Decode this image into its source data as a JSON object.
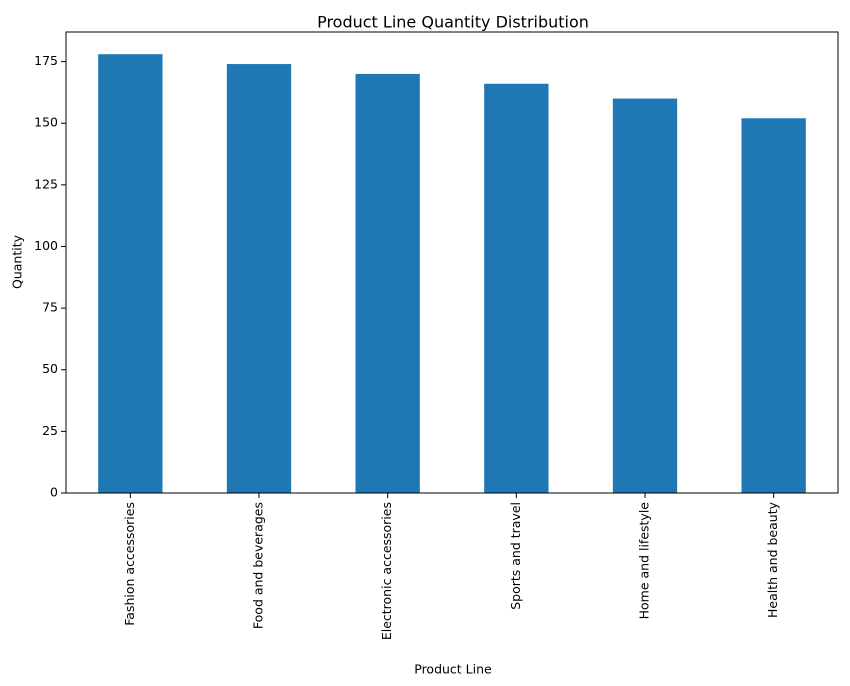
{
  "chart_data": {
    "type": "bar",
    "title": "Product Line Quantity Distribution",
    "xlabel": "Product Line",
    "ylabel": "Quantity",
    "categories": [
      "Fashion accessories",
      "Food and beverages",
      "Electronic accessories",
      "Sports and travel",
      "Home and lifestyle",
      "Health and beauty"
    ],
    "values": [
      178,
      174,
      170,
      166,
      160,
      152
    ],
    "ylim": [
      0,
      187
    ],
    "yticks": [
      0,
      25,
      50,
      75,
      100,
      125,
      150,
      175
    ],
    "bar_color": "#1f77b4",
    "grid": false,
    "legend": false
  }
}
